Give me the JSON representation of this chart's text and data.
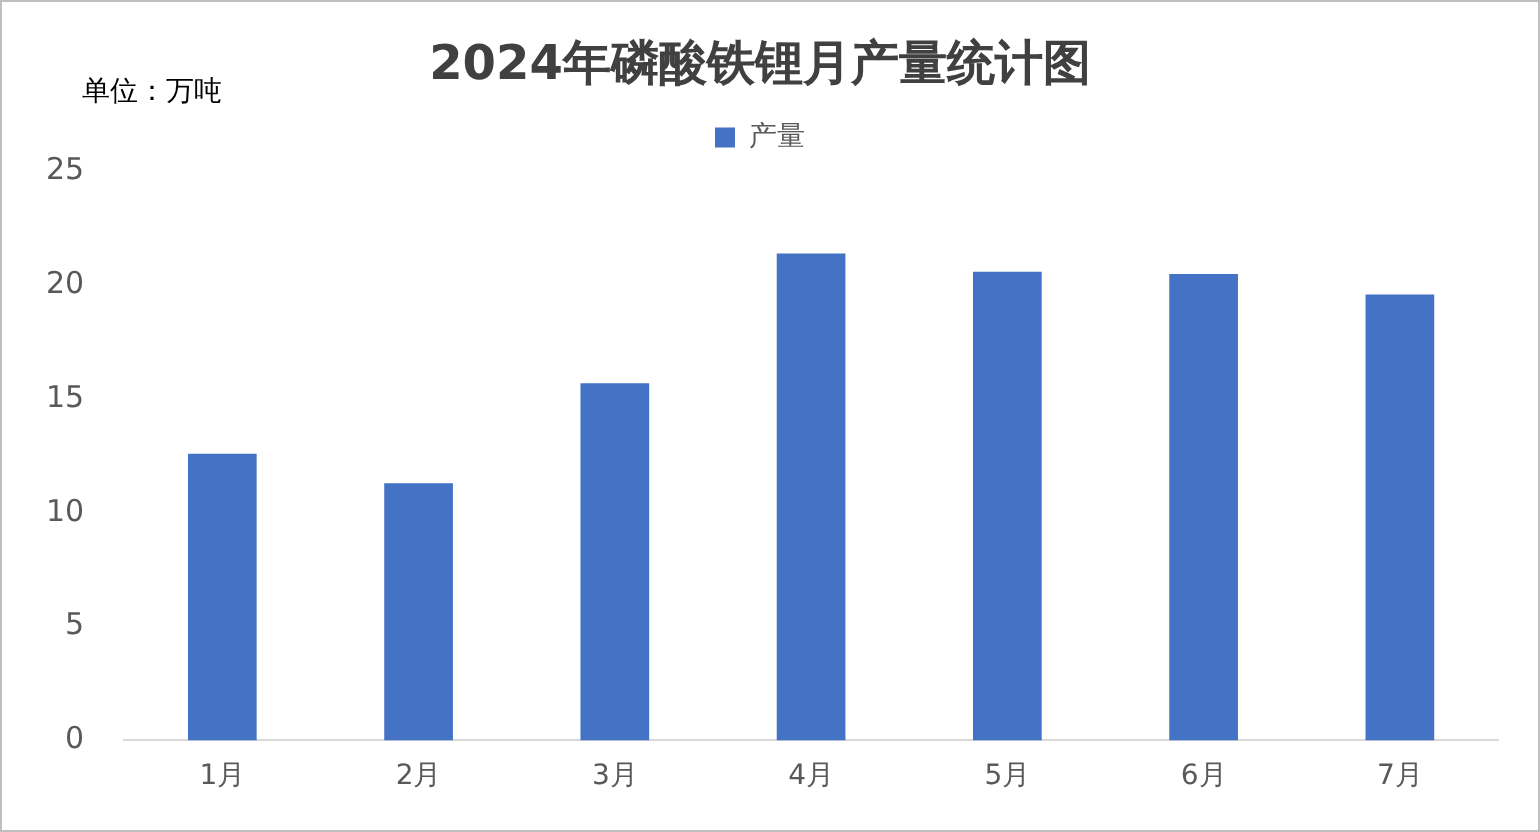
{
  "chart_data": {
    "type": "bar",
    "title": "2024年磷酸铁锂月产量统计图",
    "ylabel": "单位：万吨",
    "categories": [
      "1月",
      "2月",
      "3月",
      "4月",
      "5月",
      "6月",
      "7月"
    ],
    "series": [
      {
        "name": "产量",
        "color": "#4472c4",
        "values": [
          12.6,
          11.3,
          15.7,
          21.4,
          20.6,
          20.5,
          19.6
        ]
      }
    ],
    "ylim": [
      0,
      25
    ],
    "yticks": [
      0,
      5,
      10,
      15,
      20,
      25
    ],
    "grid": false,
    "legend": "top"
  }
}
